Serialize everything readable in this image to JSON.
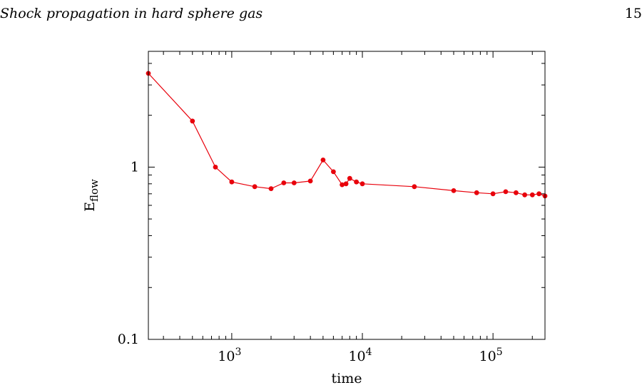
{
  "header": {
    "running_title": "Shock propagation in hard sphere gas",
    "page_number": "15"
  },
  "chart_data": {
    "type": "line",
    "title": "",
    "xlabel": "time",
    "ylabel_main": "E",
    "ylabel_sub": "flow",
    "xscale": "log",
    "yscale": "log",
    "xlim": [
      230,
      250000
    ],
    "ylim": [
      0.1,
      4.7
    ],
    "grid": false,
    "legend": "none",
    "series_color": "#e8000b",
    "xticks": [
      {
        "base": "10",
        "exp": "3",
        "value": 1000
      },
      {
        "base": "10",
        "exp": "4",
        "value": 10000
      },
      {
        "base": "10",
        "exp": "5",
        "value": 100000
      }
    ],
    "yticks": [
      {
        "label": "1",
        "value": 1
      },
      {
        "label": "0.1",
        "value": 0.1
      }
    ],
    "series": [
      {
        "x": [
          230,
          500,
          750,
          1000,
          1500,
          2000,
          2500,
          3000,
          4000,
          5000,
          6000,
          7000,
          7500,
          8000,
          9000,
          10000,
          25000,
          50000,
          75000,
          100000,
          125000,
          150000,
          175000,
          200000,
          225000,
          250000
        ],
        "y": [
          3.5,
          1.85,
          1.0,
          0.82,
          0.77,
          0.75,
          0.81,
          0.81,
          0.83,
          1.1,
          0.94,
          0.79,
          0.8,
          0.86,
          0.82,
          0.8,
          0.77,
          0.73,
          0.71,
          0.7,
          0.72,
          0.71,
          0.69,
          0.69,
          0.7,
          0.68
        ]
      }
    ]
  }
}
